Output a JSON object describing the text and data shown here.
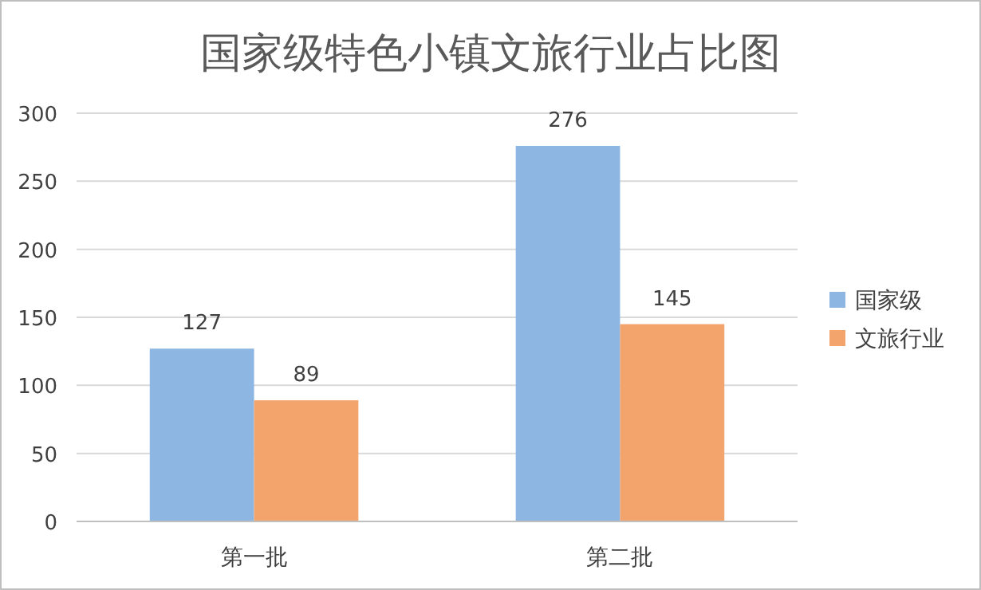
{
  "chart_data": {
    "type": "bar",
    "title": "国家级特色小镇文旅行业占比图",
    "categories": [
      "第一批",
      "第二批"
    ],
    "series": [
      {
        "name": "国家级",
        "color": "#8db7e2",
        "values": [
          127,
          276
        ]
      },
      {
        "name": "文旅行业",
        "color": "#f3a36c",
        "values": [
          89,
          145
        ]
      }
    ],
    "ylim": [
      0,
      300
    ],
    "yticks": [
      0,
      50,
      100,
      150,
      200,
      250,
      300
    ],
    "grid": "y",
    "legend": "right",
    "data_labels": true
  }
}
